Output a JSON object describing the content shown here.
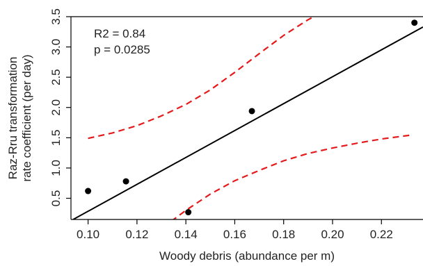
{
  "chart_data": {
    "type": "scatter",
    "title": "",
    "xlabel": "Woody debris (abundance per m)",
    "ylabel_lines": [
      "Raz-Rru transformation",
      "rate coefficient (per day)"
    ],
    "xlim": [
      0.093,
      0.237
    ],
    "ylim": [
      0.15,
      3.5
    ],
    "x_ticks": [
      0.1,
      0.12,
      0.14,
      0.16,
      0.18,
      0.2,
      0.22
    ],
    "x_tick_labels": [
      "0.10",
      "0.12",
      "0.14",
      "0.16",
      "0.18",
      "0.20",
      "0.22"
    ],
    "y_ticks": [
      0.5,
      1.0,
      1.5,
      2.0,
      2.5,
      3.0,
      3.5
    ],
    "y_tick_labels": [
      "0.5",
      "1.0",
      "1.5",
      "2.0",
      "2.5",
      "3.0",
      "3.5"
    ],
    "grid": false,
    "legend": "none",
    "points": [
      {
        "x": 0.1,
        "y": 0.62
      },
      {
        "x": 0.1155,
        "y": 0.78
      },
      {
        "x": 0.141,
        "y": 0.27
      },
      {
        "x": 0.167,
        "y": 1.94
      },
      {
        "x": 0.2335,
        "y": 3.4
      }
    ],
    "regression_line": {
      "x": [
        0.093,
        0.237
      ],
      "y": [
        0.13,
        3.33
      ],
      "color": "#000000"
    },
    "confidence_upper": {
      "x": [
        0.1,
        0.11,
        0.12,
        0.13,
        0.14,
        0.15,
        0.16,
        0.17,
        0.18,
        0.19,
        0.196
      ],
      "y": [
        1.49,
        1.58,
        1.7,
        1.86,
        2.05,
        2.29,
        2.58,
        2.89,
        3.19,
        3.45,
        3.58
      ],
      "color": "#e41a1c",
      "style": "dashed"
    },
    "confidence_lower": {
      "x": [
        0.134,
        0.14,
        0.15,
        0.16,
        0.17,
        0.18,
        0.19,
        0.2,
        0.21,
        0.22,
        0.2315
      ],
      "y": [
        0.12,
        0.3,
        0.57,
        0.79,
        0.96,
        1.12,
        1.24,
        1.33,
        1.41,
        1.48,
        1.54
      ],
      "color": "#e41a1c",
      "style": "dashed"
    },
    "annotations": [
      "R2 = 0.84",
      "p = 0.0285"
    ]
  }
}
